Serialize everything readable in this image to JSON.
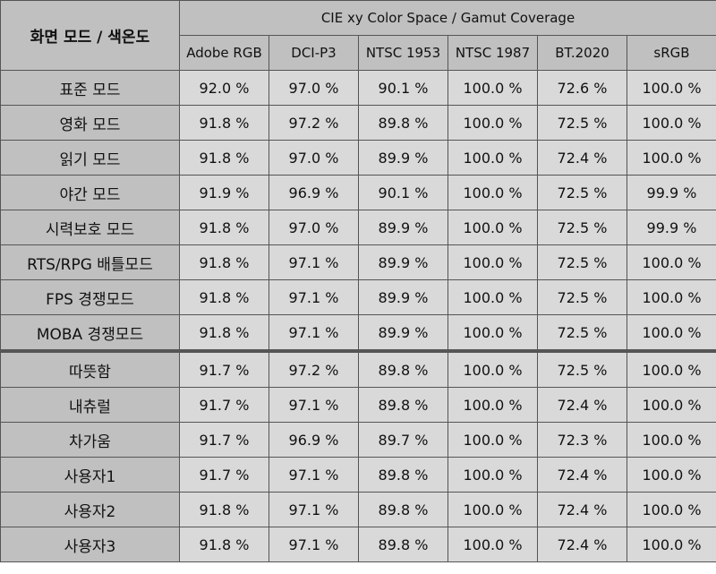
{
  "table": {
    "corner_header": "화면 모드 / 색온도",
    "group_header": "CIE xy Color Space / Gamut Coverage",
    "columns": [
      "Adobe RGB",
      "DCI-P3",
      "NTSC 1953",
      "NTSC 1987",
      "BT.2020",
      "sRGB"
    ],
    "rows": [
      {
        "label": "표준 모드",
        "values": [
          "92.0 %",
          "97.0 %",
          "90.1 %",
          "100.0 %",
          "72.6 %",
          "100.0 %"
        ]
      },
      {
        "label": "영화 모드",
        "values": [
          "91.8 %",
          "97.2 %",
          "89.8 %",
          "100.0 %",
          "72.5 %",
          "100.0 %"
        ]
      },
      {
        "label": "읽기 모드",
        "values": [
          "91.8 %",
          "97.0 %",
          "89.9 %",
          "100.0 %",
          "72.4 %",
          "100.0 %"
        ]
      },
      {
        "label": "야간 모드",
        "values": [
          "91.9 %",
          "96.9 %",
          "90.1 %",
          "100.0 %",
          "72.5 %",
          "99.9 %"
        ]
      },
      {
        "label": "시력보호 모드",
        "values": [
          "91.8 %",
          "97.0 %",
          "89.9 %",
          "100.0 %",
          "72.5 %",
          "99.9 %"
        ]
      },
      {
        "label": "RTS/RPG 배틀모드",
        "values": [
          "91.8 %",
          "97.1 %",
          "89.9 %",
          "100.0 %",
          "72.5 %",
          "100.0 %"
        ]
      },
      {
        "label": "FPS 경쟁모드",
        "values": [
          "91.8 %",
          "97.1 %",
          "89.9 %",
          "100.0 %",
          "72.5 %",
          "100.0 %"
        ]
      },
      {
        "label": "MOBA 경쟁모드",
        "values": [
          "91.8 %",
          "97.1 %",
          "89.9 %",
          "100.0 %",
          "72.5 %",
          "100.0 %"
        ]
      },
      {
        "label": "따뜻함",
        "values": [
          "91.7 %",
          "97.2 %",
          "89.8 %",
          "100.0 %",
          "72.5 %",
          "100.0 %"
        ]
      },
      {
        "label": "내츄럴",
        "values": [
          "91.7 %",
          "97.1 %",
          "89.8 %",
          "100.0 %",
          "72.4 %",
          "100.0 %"
        ]
      },
      {
        "label": "차가움",
        "values": [
          "91.7 %",
          "96.9 %",
          "89.7 %",
          "100.0 %",
          "72.3 %",
          "100.0 %"
        ]
      },
      {
        "label": "사용자1",
        "values": [
          "91.7 %",
          "97.1 %",
          "89.8 %",
          "100.0 %",
          "72.4 %",
          "100.0 %"
        ]
      },
      {
        "label": "사용자2",
        "values": [
          "91.8 %",
          "97.1 %",
          "89.8 %",
          "100.0 %",
          "72.4 %",
          "100.0 %"
        ]
      },
      {
        "label": "사용자3",
        "values": [
          "91.8 %",
          "97.1 %",
          "89.8 %",
          "100.0 %",
          "72.4 %",
          "100.0 %"
        ]
      }
    ],
    "colors": {
      "header_bg": "#c0c0c0",
      "cell_bg": "#d9d9d9",
      "border": "#555555"
    }
  }
}
